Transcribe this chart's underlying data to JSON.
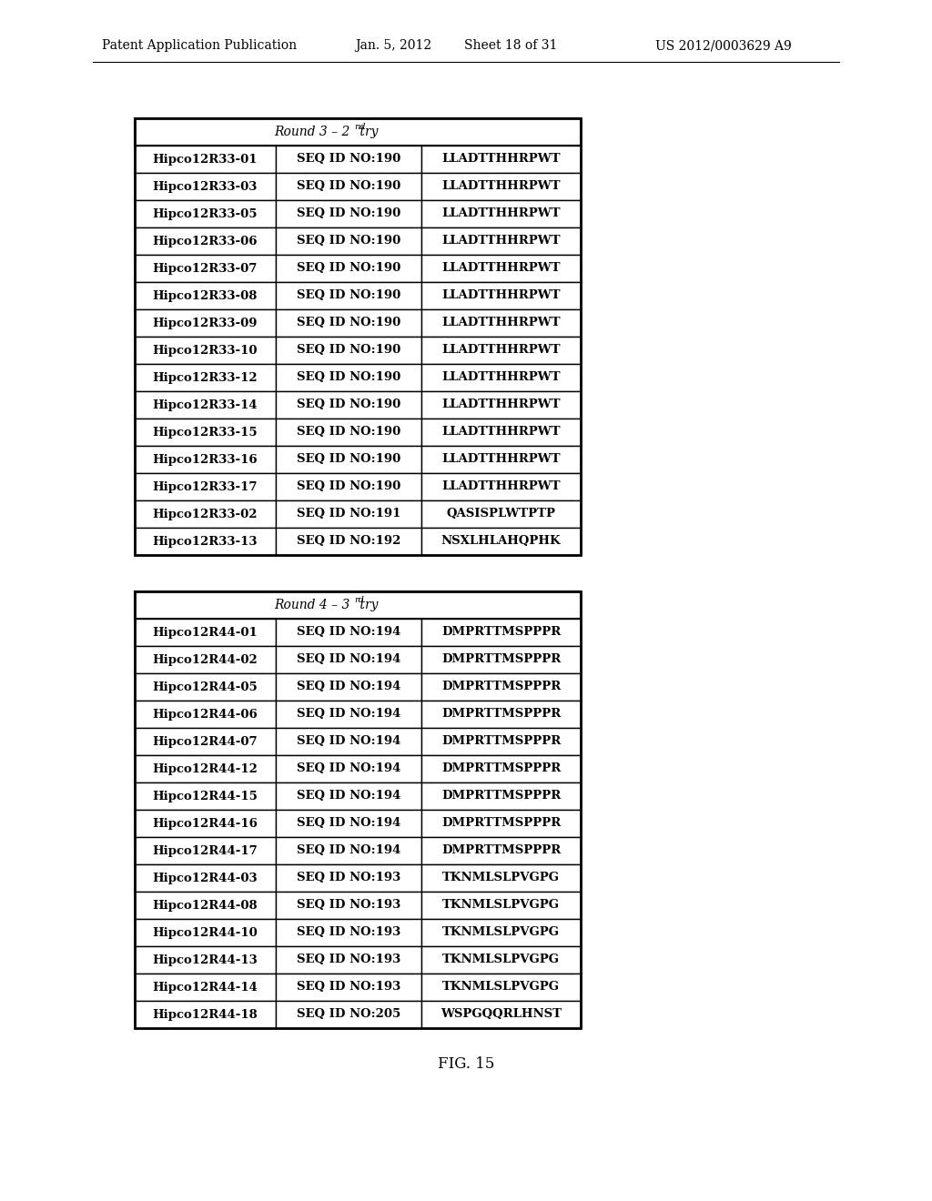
{
  "header_left": "Patent Application Publication",
  "header_date": "Jan. 5, 2012",
  "header_sheet": "Sheet 18 of 31",
  "header_right": "US 2012/0003629 A9",
  "figure_label": "FIG. 15",
  "table1_title": "Round 3 – 2nd try",
  "table1_superscript": "nd",
  "table1_rows": [
    [
      "Hipco12R33-01",
      "SEQ ID NO:190",
      "LLADTTHHRPWT"
    ],
    [
      "Hipco12R33-03",
      "SEQ ID NO:190",
      "LLADTTHHRPWT"
    ],
    [
      "Hipco12R33-05",
      "SEQ ID NO:190",
      "LLADTTHHRPWT"
    ],
    [
      "Hipco12R33-06",
      "SEQ ID NO:190",
      "LLADTTHHRPWT"
    ],
    [
      "Hipco12R33-07",
      "SEQ ID NO:190",
      "LLADTTHHRPWT"
    ],
    [
      "Hipco12R33-08",
      "SEQ ID NO:190",
      "LLADTTHHRPWT"
    ],
    [
      "Hipco12R33-09",
      "SEQ ID NO:190",
      "LLADTTHHRPWT"
    ],
    [
      "Hipco12R33-10",
      "SEQ ID NO:190",
      "LLADTTHHRPWT"
    ],
    [
      "Hipco12R33-12",
      "SEQ ID NO:190",
      "LLADTTHHRPWT"
    ],
    [
      "Hipco12R33-14",
      "SEQ ID NO:190",
      "LLADTTHHRPWT"
    ],
    [
      "Hipco12R33-15",
      "SEQ ID NO:190",
      "LLADTTHHRPWT"
    ],
    [
      "Hipco12R33-16",
      "SEQ ID NO:190",
      "LLADTTHHRPWT"
    ],
    [
      "Hipco12R33-17",
      "SEQ ID NO:190",
      "LLADTTHHRPWT"
    ],
    [
      "Hipco12R33-02",
      "SEQ ID NO:191",
      "QASISPLWTPTP"
    ],
    [
      "Hipco12R33-13",
      "SEQ ID NO:192",
      "NSXLHLAHQPHK"
    ]
  ],
  "table2_title": "Round 4 – 3rd try",
  "table2_superscript": "rd",
  "table2_rows": [
    [
      "Hipco12R44-01",
      "SEQ ID NO:194",
      "DMPRTTMSPPPR"
    ],
    [
      "Hipco12R44-02",
      "SEQ ID NO:194",
      "DMPRTTMSPPPR"
    ],
    [
      "Hipco12R44-05",
      "SEQ ID NO:194",
      "DMPRTTMSPPPR"
    ],
    [
      "Hipco12R44-06",
      "SEQ ID NO:194",
      "DMPRTTMSPPPR"
    ],
    [
      "Hipco12R44-07",
      "SEQ ID NO:194",
      "DMPRTTMSPPPR"
    ],
    [
      "Hipco12R44-12",
      "SEQ ID NO:194",
      "DMPRTTMSPPPR"
    ],
    [
      "Hipco12R44-15",
      "SEQ ID NO:194",
      "DMPRTTMSPPPR"
    ],
    [
      "Hipco12R44-16",
      "SEQ ID NO:194",
      "DMPRTTMSPPPR"
    ],
    [
      "Hipco12R44-17",
      "SEQ ID NO:194",
      "DMPRTTMSPPPR"
    ],
    [
      "Hipco12R44-03",
      "SEQ ID NO:193",
      "TKNMLSLPVGPG"
    ],
    [
      "Hipco12R44-08",
      "SEQ ID NO:193",
      "TKNMLSLPVGPG"
    ],
    [
      "Hipco12R44-10",
      "SEQ ID NO:193",
      "TKNMLSLPVGPG"
    ],
    [
      "Hipco12R44-13",
      "SEQ ID NO:193",
      "TKNMLSLPVGPG"
    ],
    [
      "Hipco12R44-14",
      "SEQ ID NO:193",
      "TKNMLSLPVGPG"
    ],
    [
      "Hipco12R44-18",
      "SEQ ID NO:205",
      "WSPGQQRLHNST"
    ]
  ]
}
